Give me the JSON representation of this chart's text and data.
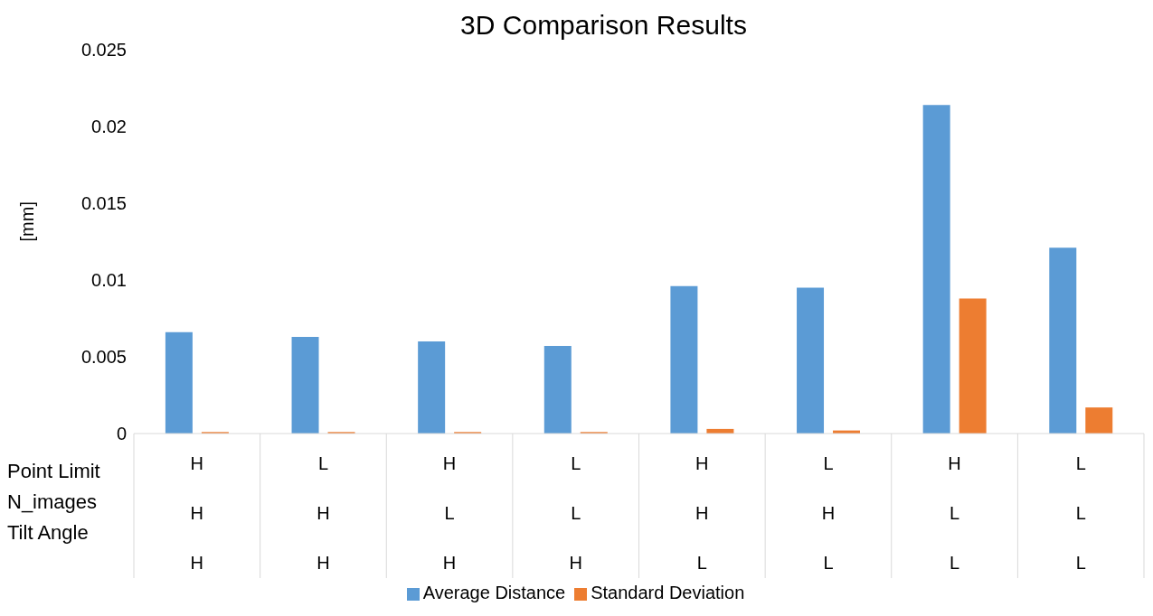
{
  "chart_data": {
    "type": "bar",
    "title": "3D Comparison Results",
    "ylabel": "[mm]",
    "categories": [
      "H\nH\nH",
      "L\nH\nH",
      "H\nL\nH",
      "L\nL\nH",
      "H\nH\nL",
      "L\nH\nL",
      "H\nL\nL",
      "L\nL\nL"
    ],
    "series": [
      {
        "name": "Average Distance",
        "color": "#5b9bd5",
        "values": [
          0.0066,
          0.0063,
          0.006,
          0.0057,
          0.0096,
          0.0095,
          0.0214,
          0.0121
        ]
      },
      {
        "name": "Standard Deviation",
        "color": "#ed7d31",
        "values": [
          0.0001,
          0.0001,
          0.0001,
          0.0001,
          0.0003,
          0.0002,
          0.0088,
          0.0017
        ]
      }
    ],
    "annotations": [
      "Point Limit",
      "N_images",
      "Tilt Angle"
    ],
    "ylim": [
      0,
      0.025
    ],
    "yticks": [
      0,
      0.005,
      0.01,
      0.015,
      0.02,
      0.025
    ],
    "grid": false,
    "legend": "bottom"
  }
}
